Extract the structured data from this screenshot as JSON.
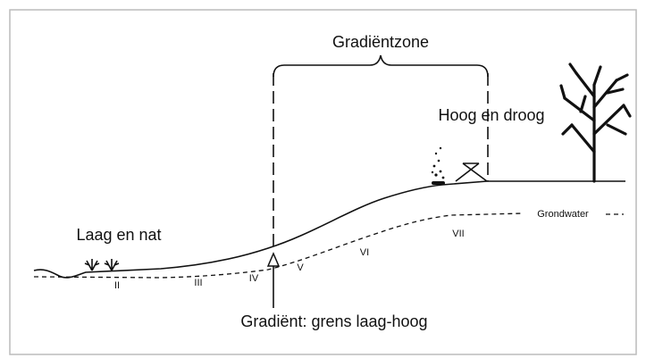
{
  "labels": {
    "zone": "Gradiëntzone",
    "high": "Hoog en droog",
    "low": "Laag en nat",
    "groundwater": "Grondwater",
    "gradient": "Gradiënt: grens laag-hoog"
  },
  "zones": [
    "II",
    "III",
    "IV",
    "V",
    "VI",
    "VII"
  ]
}
